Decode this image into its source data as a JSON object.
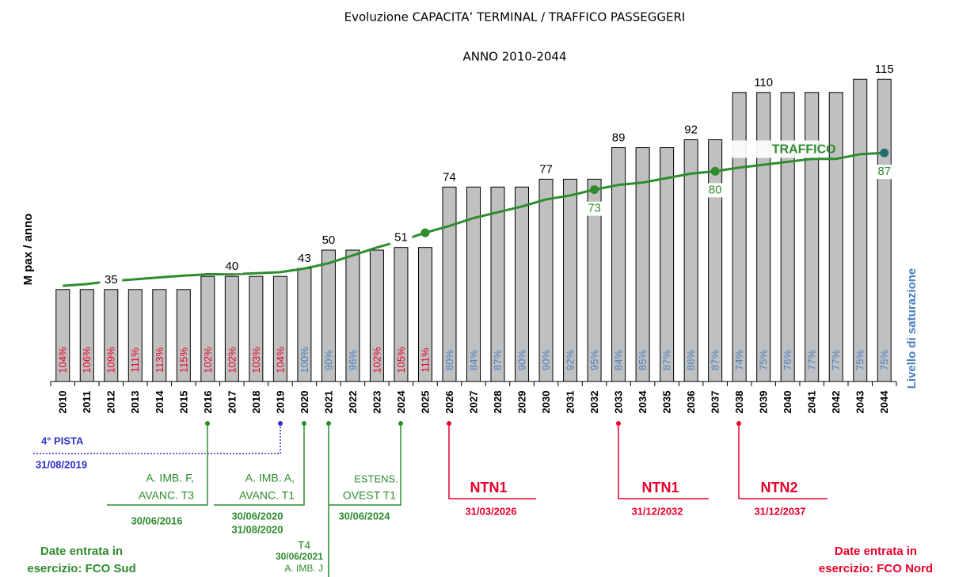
{
  "chart_data": {
    "type": "bar",
    "title": "Evoluzione CAPACITA’ TERMINAL / TRAFFICO PASSEGGERI",
    "subtitle": "ANNO 2010-2044",
    "y_label": "M pax / anno",
    "categories": [
      "2010",
      "2011",
      "2012",
      "2013",
      "2014",
      "2015",
      "2016",
      "2017",
      "2018",
      "2019",
      "2020",
      "2021",
      "2022",
      "2023",
      "2024",
      "2025",
      "2026",
      "2027",
      "2028",
      "2029",
      "2030",
      "2031",
      "2032",
      "2033",
      "2034",
      "2035",
      "2036",
      "2037",
      "2038",
      "2039",
      "2040",
      "2041",
      "2042",
      "2043",
      "2044"
    ],
    "ylim": [
      0,
      120
    ],
    "series": [
      {
        "type": "bar",
        "color": "#c0c0c0",
        "values": [
          35,
          35,
          35,
          35,
          35,
          35,
          40,
          40,
          40,
          40,
          43,
          50,
          50,
          50,
          51,
          51,
          74,
          74,
          74,
          74,
          77,
          77,
          77,
          89,
          89,
          89,
          92,
          92,
          110,
          110,
          110,
          110,
          110,
          115,
          115
        ],
        "value_labels": [
          null,
          null,
          "35",
          null,
          null,
          null,
          null,
          "40",
          null,
          null,
          "43",
          "50",
          null,
          null,
          "51",
          null,
          "74",
          null,
          null,
          null,
          "77",
          null,
          null,
          "89",
          null,
          null,
          "92",
          null,
          null,
          "110",
          null,
          null,
          null,
          null,
          "115"
        ]
      },
      {
        "type": "line",
        "name": "TRAFFICO",
        "color": "#2e8b2e",
        "values": [
          36.4,
          37.1,
          38.2,
          38.9,
          39.6,
          40.3,
          40.8,
          40.8,
          41.2,
          41.6,
          43,
          45,
          48,
          51,
          53.6,
          56.6,
          59.2,
          62.2,
          64.4,
          66.6,
          69.3,
          70.8,
          73,
          74.8,
          75.7,
          77.4,
          79.1,
          80,
          81.4,
          82.5,
          83.6,
          84.7,
          84.7,
          86.5,
          87
        ],
        "value_labels": [
          null,
          null,
          null,
          null,
          null,
          null,
          null,
          null,
          null,
          null,
          null,
          null,
          null,
          null,
          null,
          null,
          null,
          null,
          null,
          null,
          null,
          null,
          "73",
          null,
          null,
          null,
          null,
          "80",
          null,
          null,
          null,
          null,
          null,
          null,
          "87"
        ],
        "markers": [
          15,
          22,
          27,
          34
        ],
        "marker_colors": [
          "#2e8b2e",
          "#2e8b2e",
          "#2e8b2e",
          "#1f6e6e"
        ]
      }
    ],
    "saturation": {
      "name": "Livello di saturazione",
      "values": [
        104,
        106,
        109,
        111,
        113,
        115,
        102,
        102,
        103,
        104,
        100,
        90,
        96,
        102,
        105,
        111,
        80,
        84,
        87,
        90,
        90,
        92,
        95,
        84,
        85,
        87,
        86,
        87,
        74,
        75,
        76,
        77,
        77,
        75,
        75
      ],
      "value_labels": [
        "104%",
        "106%",
        "109%",
        "111%",
        "113%",
        "115%",
        "102%",
        "102%",
        "103%",
        "104%",
        "100%",
        "90%",
        "96%",
        "102%",
        "105%",
        "111%",
        "80%",
        "84%",
        "87%",
        "90%",
        "90%",
        "92%",
        "95%",
        "84%",
        "85%",
        "87%",
        "86%",
        "87%",
        "74%",
        "75%",
        "76%",
        "77%",
        "77%",
        "75%",
        "75%"
      ],
      "label_colors": [
        "#e8002a",
        "#e8002a",
        "#e8002a",
        "#e8002a",
        "#e8002a",
        "#e8002a",
        "#e8002a",
        "#e8002a",
        "#e8002a",
        "#e8002a",
        "#4a7fc1",
        "#4a7fc1",
        "#4a7fc1",
        "#e8002a",
        "#e8002a",
        "#e8002a",
        "#4a7fc1",
        "#4a7fc1",
        "#4a7fc1",
        "#4a7fc1",
        "#4a7fc1",
        "#4a7fc1",
        "#4a7fc1",
        "#4a7fc1",
        "#4a7fc1",
        "#4a7fc1",
        "#4a7fc1",
        "#4a7fc1",
        "#4a7fc1",
        "#4a7fc1",
        "#4a7fc1",
        "#4a7fc1",
        "#4a7fc1",
        "#4a7fc1",
        "#4a7fc1"
      ],
      "color": "#4a7fc1"
    },
    "annotations": [
      [
        "4° PISTA",
        "31/08/2019"
      ],
      [
        "A. IMB. F,",
        "AVANC. T3",
        "30/06/2016"
      ],
      [
        "A. IMB. A,",
        "AVANC. T1",
        "30/06/2020",
        "31/08/2020"
      ],
      [
        "T4",
        "30/06/2021",
        "A. IMB. J"
      ],
      [
        "ESTENS.",
        "OVEST T1",
        "30/06/2024"
      ],
      [
        "NTN1",
        "31/03/2026"
      ],
      [
        "NTN1",
        "31/12/2032"
      ],
      [
        "NTN2",
        "31/12/2037"
      ],
      [
        "Date entrata in",
        "esercizio: FCO Sud"
      ],
      [
        "Date entrata in",
        "esercizio: FCO Nord"
      ]
    ]
  }
}
